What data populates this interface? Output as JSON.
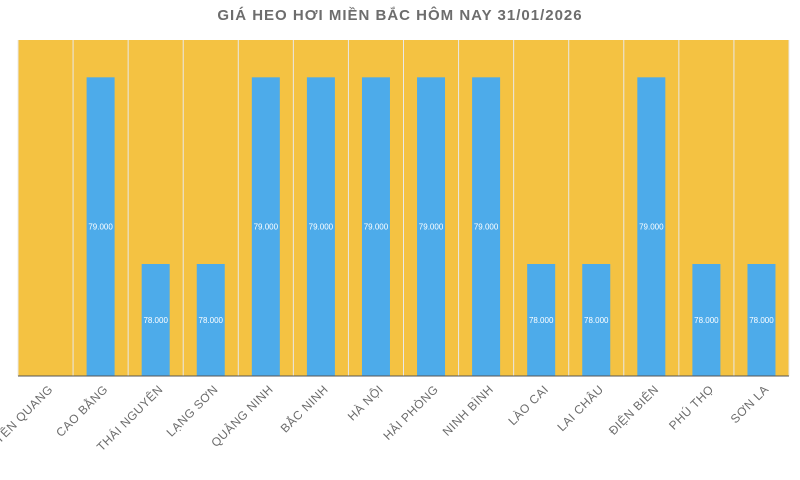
{
  "chart_data": {
    "type": "bar",
    "title": "GIÁ HEO HƠI MIỀN BẮC HÔM NAY 31/01/2026",
    "xlabel": "",
    "ylabel": "",
    "ylim": [
      77400,
      79200
    ],
    "categories": [
      "TUYÊN QUANG",
      "CAO BẰNG",
      "THÁI NGUYÊN",
      "LẠNG SƠN",
      "QUẢNG NINH",
      "BẮC NINH",
      "HÀ NỘI",
      "HẢI PHÒNG",
      "NINH BÌNH",
      "LÀO CAI",
      "LAI CHÂU",
      "ĐIỆN BIÊN",
      "PHÚ THỌ",
      "SƠN LA"
    ],
    "values": [
      null,
      79000,
      78000,
      78000,
      79000,
      79000,
      79000,
      79000,
      79000,
      78000,
      78000,
      79000,
      78000,
      78000
    ],
    "value_labels": [
      "",
      "79.000",
      "78.000",
      "78.000",
      "79.000",
      "79.000",
      "79.000",
      "79.000",
      "79.000",
      "78.000",
      "78.000",
      "79.000",
      "78.000",
      "78.000"
    ],
    "grid": true,
    "legend": "none",
    "colors": {
      "plot_bg": "#F4C242",
      "bar": "#4DABEA",
      "grid": "#e8e8e8",
      "axis": "#555555"
    }
  }
}
